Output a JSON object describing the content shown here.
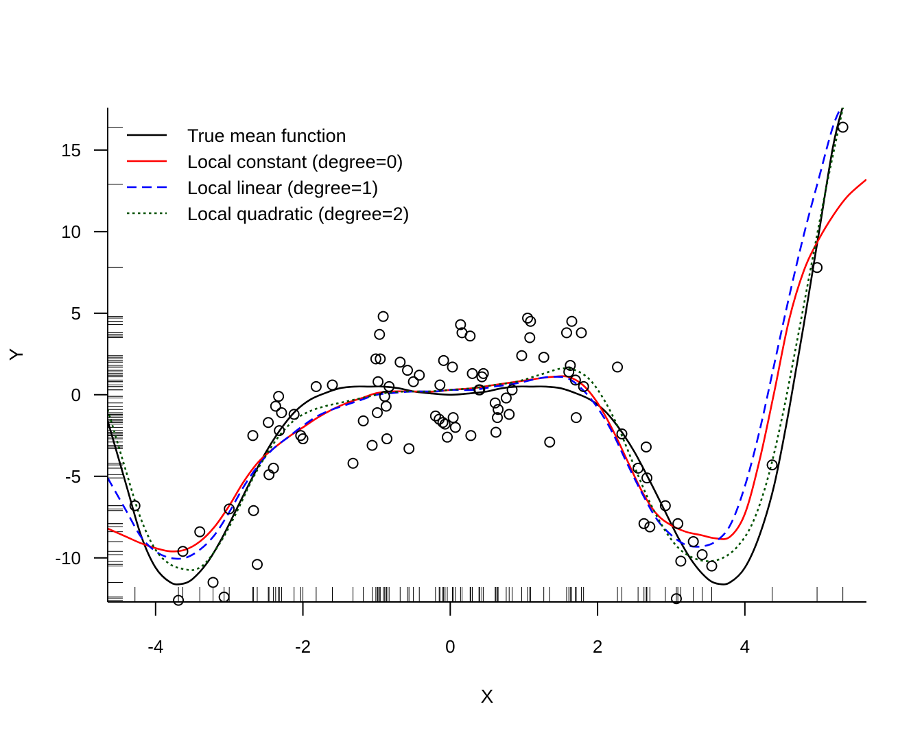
{
  "chart_data": {
    "type": "scatter",
    "title": "",
    "xlabel": "X",
    "ylabel": "Y",
    "xlim": [
      -4.65,
      5.65
    ],
    "ylim": [
      -12.7,
      17.6
    ],
    "x_ticks": [
      -4,
      -2,
      0,
      2,
      4
    ],
    "x_tick_labels": [
      "-4",
      "-2",
      "0",
      "2",
      "4"
    ],
    "y_ticks": [
      -10,
      -5,
      0,
      5,
      10,
      15
    ],
    "y_tick_labels": [
      "-10",
      "-5",
      "0",
      "5",
      "10",
      "15"
    ],
    "y_minor_ticks": [
      12.9
    ],
    "grid": false,
    "legend_position": "top-left",
    "points": {
      "x": [
        -4.28,
        -3.69,
        -3.63,
        -3.4,
        -3.22,
        -3.07,
        -3.0,
        -2.68,
        -2.67,
        -2.62,
        -2.47,
        -2.46,
        -2.4,
        -2.37,
        -2.33,
        -2.32,
        -2.29,
        -2.12,
        -2.03,
        -2.0,
        -1.82,
        -1.6,
        -1.32,
        -1.18,
        -1.06,
        -1.01,
        -0.99,
        -0.98,
        -0.96,
        -0.95,
        -0.91,
        -0.89,
        -0.87,
        -0.86,
        -0.83,
        -0.68,
        -0.58,
        -0.56,
        -0.5,
        -0.42,
        -0.2,
        -0.15,
        -0.14,
        -0.1,
        -0.09,
        -0.07,
        -0.04,
        0.03,
        0.04,
        0.07,
        0.14,
        0.16,
        0.27,
        0.28,
        0.3,
        0.39,
        0.4,
        0.43,
        0.45,
        0.61,
        0.62,
        0.64,
        0.65,
        0.76,
        0.8,
        0.84,
        0.97,
        1.05,
        1.08,
        1.09,
        1.27,
        1.35,
        1.58,
        1.61,
        1.63,
        1.65,
        1.7,
        1.71,
        1.78,
        1.81,
        2.27,
        2.33,
        2.55,
        2.63,
        2.66,
        2.67,
        2.71,
        2.92,
        3.07,
        3.09,
        3.13,
        3.3,
        3.42,
        3.55,
        4.37,
        4.98,
        5.33
      ],
      "y": [
        -6.8,
        -12.6,
        -9.6,
        -8.4,
        -11.5,
        -12.4,
        -7.0,
        -2.5,
        -7.1,
        -10.4,
        -1.7,
        -4.9,
        -4.5,
        -0.7,
        -0.1,
        -2.2,
        -1.1,
        -1.2,
        -2.5,
        -2.7,
        0.5,
        0.6,
        -4.2,
        -1.6,
        -3.1,
        2.2,
        -1.1,
        0.8,
        3.7,
        2.2,
        4.8,
        -0.1,
        -0.7,
        -2.7,
        0.5,
        2.0,
        1.5,
        -3.3,
        0.8,
        1.2,
        -1.3,
        -1.5,
        0.6,
        -1.7,
        2.1,
        -1.8,
        -2.6,
        1.7,
        -1.4,
        -2.0,
        4.3,
        3.8,
        3.6,
        -2.5,
        1.3,
        0.3,
        0.3,
        1.1,
        1.3,
        -0.5,
        -2.3,
        -1.4,
        -0.9,
        -0.2,
        -1.2,
        0.3,
        2.4,
        4.7,
        3.5,
        4.5,
        2.3,
        -2.9,
        3.8,
        1.4,
        1.8,
        4.5,
        0.9,
        -1.4,
        3.8,
        0.5,
        1.7,
        -2.4,
        -4.5,
        -7.9,
        -3.2,
        -5.1,
        -8.1,
        -6.8,
        -12.5,
        -7.9,
        -10.2,
        -9.0,
        -9.8,
        -10.5,
        -4.3,
        7.8,
        16.4
      ]
    },
    "rug_x": [
      -4.28,
      -3.69,
      -3.63,
      -3.4,
      -3.22,
      -3.07,
      -3.0,
      -2.68,
      -2.67,
      -2.62,
      -2.47,
      -2.46,
      -2.4,
      -2.37,
      -2.33,
      -2.32,
      -2.29,
      -2.12,
      -2.03,
      -2.0,
      -1.82,
      -1.6,
      -1.32,
      -1.18,
      -1.06,
      -1.01,
      -0.99,
      -0.98,
      -0.96,
      -0.95,
      -0.91,
      -0.89,
      -0.87,
      -0.86,
      -0.83,
      -0.68,
      -0.58,
      -0.56,
      -0.5,
      -0.42,
      -0.2,
      -0.15,
      -0.14,
      -0.1,
      -0.09,
      -0.07,
      -0.04,
      0.03,
      0.04,
      0.07,
      0.14,
      0.16,
      0.27,
      0.28,
      0.3,
      0.39,
      0.4,
      0.43,
      0.45,
      0.61,
      0.62,
      0.64,
      0.65,
      0.76,
      0.8,
      0.84,
      0.97,
      1.05,
      1.08,
      1.09,
      1.27,
      1.35,
      1.58,
      1.61,
      1.63,
      1.65,
      1.7,
      1.71,
      1.78,
      1.81,
      2.27,
      2.33,
      2.55,
      2.63,
      2.66,
      2.67,
      2.71,
      2.92,
      3.07,
      3.09,
      3.13,
      3.3,
      3.42,
      3.55,
      4.37,
      4.98,
      5.33
    ],
    "rug_y": [
      -12.6,
      -12.5,
      -12.4,
      -11.5,
      -10.5,
      -10.4,
      -10.2,
      -9.8,
      -9.6,
      -9.0,
      -8.4,
      -8.1,
      -7.9,
      -7.9,
      -7.1,
      -7.0,
      -6.8,
      -6.8,
      -5.1,
      -4.9,
      -4.5,
      -4.5,
      -4.3,
      -4.2,
      -3.3,
      -3.2,
      -3.1,
      -2.9,
      -2.7,
      -2.7,
      -2.6,
      -2.5,
      -2.5,
      -2.5,
      -2.4,
      -2.3,
      -2.2,
      -2.0,
      -1.8,
      -1.7,
      -1.7,
      -1.6,
      -1.5,
      -1.4,
      -1.4,
      -1.4,
      -1.3,
      -1.2,
      -1.2,
      -1.1,
      -1.1,
      -0.9,
      -0.7,
      -0.7,
      -0.5,
      -0.2,
      -0.1,
      -0.1,
      0.3,
      0.3,
      0.3,
      0.5,
      0.5,
      0.5,
      0.6,
      0.6,
      0.8,
      0.8,
      0.9,
      1.1,
      1.2,
      1.3,
      1.3,
      1.4,
      1.5,
      1.7,
      1.7,
      1.8,
      2.0,
      2.1,
      2.2,
      2.2,
      2.3,
      2.4,
      3.5,
      3.6,
      3.7,
      3.8,
      3.8,
      3.8,
      4.3,
      4.5,
      4.5,
      4.7,
      4.8,
      7.8,
      16.4
    ],
    "series": [
      {
        "name": "True mean function",
        "color": "#000000",
        "dash": "solid",
        "x": [
          -4.65,
          -4.4,
          -4.2,
          -4.0,
          -3.8,
          -3.65,
          -3.5,
          -3.3,
          -3.1,
          -2.9,
          -2.7,
          -2.5,
          -2.3,
          -2.1,
          -1.9,
          -1.7,
          -1.5,
          -1.3,
          -1.1,
          -0.9,
          -0.7,
          -0.5,
          -0.3,
          0,
          0.3,
          0.5,
          0.7,
          0.9,
          1.1,
          1.3,
          1.5,
          1.7,
          1.9,
          2.1,
          2.3,
          2.5,
          2.7,
          2.9,
          3.1,
          3.3,
          3.5,
          3.65,
          3.8,
          4.0,
          4.2,
          4.4,
          4.6,
          4.8,
          5.0,
          5.2,
          5.35
        ],
        "y": [
          -1.6,
          -5.5,
          -8.6,
          -10.6,
          -11.5,
          -11.6,
          -11.3,
          -10.3,
          -8.8,
          -7.0,
          -5.2,
          -3.5,
          -2.1,
          -1.0,
          -0.3,
          0.1,
          0.4,
          0.5,
          0.5,
          0.5,
          0.4,
          0.2,
          0.1,
          0.0,
          0.1,
          0.2,
          0.4,
          0.5,
          0.5,
          0.5,
          0.4,
          0.1,
          -0.3,
          -1.0,
          -2.1,
          -3.5,
          -5.2,
          -7.0,
          -8.8,
          -10.3,
          -11.3,
          -11.6,
          -11.5,
          -10.6,
          -8.6,
          -5.5,
          -0.9,
          4.3,
          9.8,
          15.3,
          18.0
        ]
      },
      {
        "name": "Local constant (degree=0)",
        "color": "#ff0000",
        "dash": "solid",
        "x": [
          -4.65,
          -4.4,
          -4.2,
          -4.0,
          -3.8,
          -3.6,
          -3.4,
          -3.2,
          -3.0,
          -2.8,
          -2.6,
          -2.4,
          -2.2,
          -2.0,
          -1.8,
          -1.6,
          -1.4,
          -1.2,
          -1.0,
          -0.8,
          -0.5,
          -0.2,
          0.0,
          0.3,
          0.6,
          0.9,
          1.2,
          1.4,
          1.6,
          1.8,
          2.0,
          2.2,
          2.4,
          2.6,
          2.8,
          3.0,
          3.2,
          3.4,
          3.6,
          3.8,
          4.0,
          4.2,
          4.4,
          4.6,
          4.8,
          5.0,
          5.2,
          5.4,
          5.65
        ],
        "y": [
          -8.2,
          -8.7,
          -9.1,
          -9.4,
          -9.6,
          -9.5,
          -9.0,
          -8.1,
          -6.8,
          -5.3,
          -4.1,
          -3.3,
          -2.6,
          -2.0,
          -1.4,
          -0.9,
          -0.5,
          -0.2,
          0.1,
          0.2,
          0.2,
          0.2,
          0.3,
          0.4,
          0.6,
          0.8,
          1.0,
          1.1,
          1.1,
          0.6,
          -0.5,
          -2.1,
          -4.0,
          -5.9,
          -7.3,
          -8.0,
          -8.4,
          -8.6,
          -8.8,
          -8.7,
          -7.3,
          -4.0,
          0.2,
          4.6,
          7.6,
          9.5,
          11.0,
          12.2,
          13.2
        ]
      },
      {
        "name": "Local linear (degree=1)",
        "color": "#0000ff",
        "dash": "dashed",
        "x": [
          -4.65,
          -4.4,
          -4.2,
          -4.0,
          -3.8,
          -3.6,
          -3.4,
          -3.2,
          -3.0,
          -2.8,
          -2.6,
          -2.4,
          -2.2,
          -2.0,
          -1.8,
          -1.6,
          -1.4,
          -1.2,
          -1.0,
          -0.8,
          -0.5,
          -0.2,
          0.0,
          0.3,
          0.6,
          0.9,
          1.2,
          1.4,
          1.6,
          1.8,
          2.0,
          2.2,
          2.4,
          2.6,
          2.8,
          3.0,
          3.2,
          3.4,
          3.6,
          3.8,
          4.0,
          4.2,
          4.4,
          4.6,
          4.8,
          5.0,
          5.2,
          5.35
        ],
        "y": [
          -5.1,
          -7.1,
          -8.7,
          -9.6,
          -10.0,
          -10.0,
          -9.5,
          -8.6,
          -7.2,
          -5.6,
          -4.3,
          -3.3,
          -2.6,
          -1.9,
          -1.3,
          -0.9,
          -0.6,
          -0.3,
          0.0,
          0.1,
          0.2,
          0.2,
          0.3,
          0.3,
          0.5,
          0.7,
          1.0,
          1.1,
          1.0,
          0.3,
          -0.8,
          -2.3,
          -4.2,
          -6.0,
          -7.6,
          -8.6,
          -9.2,
          -9.3,
          -9.0,
          -8.0,
          -5.6,
          -2.2,
          1.9,
          6.0,
          9.8,
          13.2,
          16.5,
          18.0
        ]
      },
      {
        "name": "Local quadratic (degree=2)",
        "color": "#005000",
        "dash": "dotted",
        "x": [
          -4.65,
          -4.4,
          -4.2,
          -4.0,
          -3.8,
          -3.6,
          -3.45,
          -3.3,
          -3.1,
          -2.9,
          -2.7,
          -2.5,
          -2.3,
          -2.1,
          -1.9,
          -1.7,
          -1.5,
          -1.3,
          -1.1,
          -0.9,
          -0.6,
          -0.3,
          0.0,
          0.3,
          0.6,
          0.9,
          1.2,
          1.5,
          1.7,
          1.9,
          2.1,
          2.3,
          2.5,
          2.7,
          2.9,
          3.1,
          3.3,
          3.5,
          3.7,
          3.9,
          4.1,
          4.3,
          4.5,
          4.7,
          4.9,
          5.1,
          5.35
        ],
        "y": [
          -0.9,
          -4.7,
          -7.6,
          -9.5,
          -10.4,
          -10.7,
          -10.7,
          -10.2,
          -8.9,
          -7.2,
          -5.3,
          -3.7,
          -2.4,
          -1.5,
          -1.0,
          -0.7,
          -0.5,
          -0.3,
          -0.1,
          0.1,
          0.2,
          0.2,
          0.3,
          0.4,
          0.6,
          0.8,
          1.2,
          1.6,
          1.5,
          0.9,
          -0.4,
          -2.2,
          -4.4,
          -6.5,
          -8.2,
          -9.4,
          -10.0,
          -10.2,
          -10.0,
          -9.3,
          -7.9,
          -5.3,
          -1.5,
          3.1,
          7.9,
          12.6,
          18.0
        ]
      }
    ]
  }
}
